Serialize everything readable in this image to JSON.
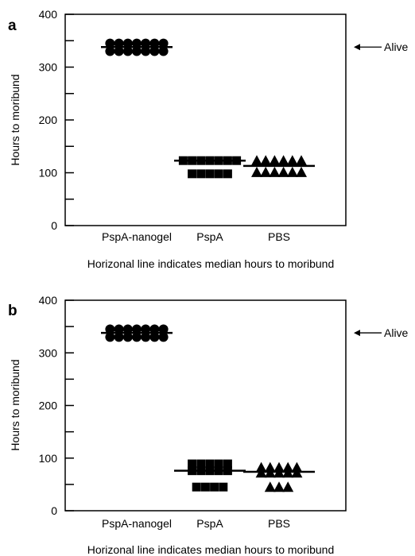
{
  "chart_data": [
    {
      "panel_label": "a",
      "type": "scatter",
      "ylabel": "Hours to moribund",
      "xlabel": "Horizonal line indicates median hours to moribund",
      "ylim": [
        0,
        400
      ],
      "yticks": [
        0,
        100,
        200,
        300,
        400
      ],
      "yminor": [
        50,
        150,
        250,
        350
      ],
      "categories": [
        "PspA-nanogel",
        "PspA",
        "PBS"
      ],
      "groups": [
        {
          "category": "PspA-nanogel",
          "marker": "circle",
          "median": 338,
          "rows": [
            {
              "y": 345,
              "n": 7
            },
            {
              "y": 330,
              "n": 7
            }
          ]
        },
        {
          "category": "PspA",
          "marker": "square",
          "median": 123,
          "rows": [
            {
              "y": 123,
              "n": 7
            },
            {
              "y": 98,
              "n": 5
            }
          ]
        },
        {
          "category": "PBS",
          "marker": "triangle",
          "median": 113,
          "rows": [
            {
              "y": 123,
              "n": 6
            },
            {
              "y": 101,
              "n": 6
            }
          ]
        }
      ],
      "annotation": {
        "text": "Alive",
        "y": 338
      }
    },
    {
      "panel_label": "b",
      "type": "scatter",
      "ylabel": "Hours to moribund",
      "xlabel": "Horizonal line indicates median hours to moribund",
      "ylim": [
        0,
        400
      ],
      "yticks": [
        0,
        100,
        200,
        300,
        400
      ],
      "yminor": [
        50,
        150,
        250,
        350
      ],
      "categories": [
        "PspA-nanogel",
        "PspA",
        "PBS"
      ],
      "groups": [
        {
          "category": "PspA-nanogel",
          "marker": "circle",
          "median": 338,
          "rows": [
            {
              "y": 345,
              "n": 7
            },
            {
              "y": 330,
              "n": 7
            }
          ]
        },
        {
          "category": "PspA",
          "marker": "square",
          "median": 76,
          "rows": [
            {
              "y": 89,
              "n": 5
            },
            {
              "y": 76,
              "n": 5
            },
            {
              "y": 45,
              "n": 4
            }
          ]
        },
        {
          "category": "PBS",
          "marker": "triangle",
          "median": 74,
          "rows": [
            {
              "y": 82,
              "n": 5
            },
            {
              "y": 72,
              "n": 5
            },
            {
              "y": 45,
              "n": 3
            }
          ]
        }
      ],
      "annotation": {
        "text": "Alive",
        "y": 338
      }
    }
  ]
}
